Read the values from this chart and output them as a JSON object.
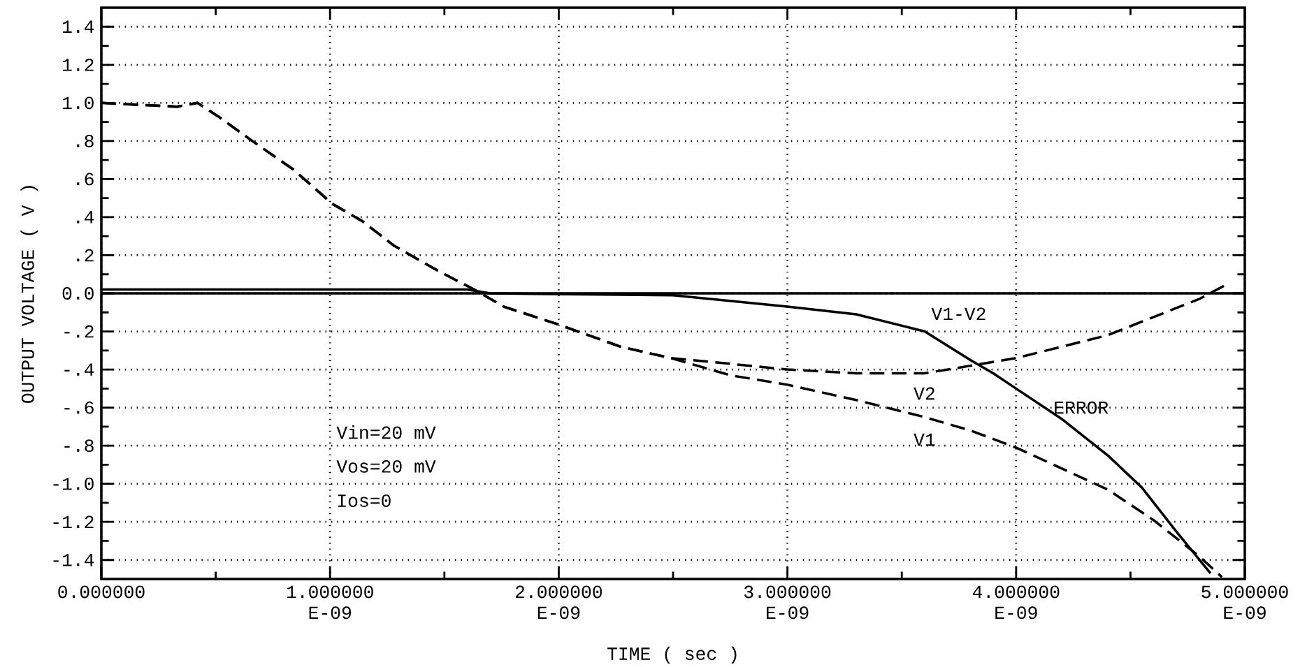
{
  "chart_data": {
    "type": "line",
    "xlabel": "TIME ( sec )",
    "ylabel": "OUTPUT VOLTAGE ( V )",
    "xlim": [
      0,
      5e-09
    ],
    "ylim": [
      -1.5,
      1.5
    ],
    "xticks": [
      {
        "value": 0,
        "label": "0.000000"
      },
      {
        "value": 1e-09,
        "label": "1.000000E-09"
      },
      {
        "value": 2e-09,
        "label": "2.000000E-09"
      },
      {
        "value": 3e-09,
        "label": "3.000000E-09"
      },
      {
        "value": 4e-09,
        "label": "4.000000E-09"
      },
      {
        "value": 5e-09,
        "label": "5.000000E-09"
      }
    ],
    "yticks": [
      1.4,
      1.2,
      {
        "value": 1.0,
        "label": "1.0"
      },
      {
        "value": 0.8,
        "label": ".8"
      },
      {
        "value": 0.6,
        "label": ".6"
      },
      {
        "value": 0.4,
        "label": ".4"
      },
      {
        "value": 0.2,
        "label": ".2"
      },
      {
        "value": 0,
        "label": "0.0"
      },
      {
        "value": -0.2,
        "label": "-.2"
      },
      {
        "value": -0.4,
        "label": "-.4"
      },
      {
        "value": -0.6,
        "label": "-.6"
      },
      {
        "value": -0.8,
        "label": "-.8"
      },
      {
        "value": -1.0,
        "label": "-1.0"
      },
      -1.2,
      -1.4
    ],
    "grid": true,
    "marker": "none",
    "ref_lines": [
      {
        "axis": "y",
        "value": 0
      }
    ],
    "series": [
      {
        "name": "V1",
        "color": "#000000",
        "line_style": "dashed",
        "x": [
          0,
          3.3e-10,
          4.2e-10,
          5.1e-10,
          6.6e-10,
          8.4e-10,
          1.01e-09,
          1.14e-09,
          1.28e-09,
          1.47e-09,
          1.63e-09,
          1.76e-09,
          1.99e-09,
          2.27e-09,
          2.49e-09,
          2.75e-09,
          3e-09,
          3.3e-09,
          3.6e-09,
          3.8e-09,
          4e-09,
          4.2e-09,
          4.4e-09,
          4.6e-09,
          4.8e-09,
          4.9e-09
        ],
        "values": [
          1.0,
          0.98,
          1.0,
          0.93,
          0.8,
          0.65,
          0.47,
          0.38,
          0.25,
          0.12,
          0.02,
          -0.07,
          -0.16,
          -0.28,
          -0.34,
          -0.43,
          -0.48,
          -0.56,
          -0.65,
          -0.72,
          -0.81,
          -0.92,
          -1.03,
          -1.19,
          -1.38,
          -1.49
        ]
      },
      {
        "name": "V2",
        "color": "#000000",
        "line_style": "dashed",
        "x": [
          0,
          3.3e-10,
          4.2e-10,
          5.1e-10,
          6.6e-10,
          8.4e-10,
          1.01e-09,
          1.14e-09,
          1.28e-09,
          1.47e-09,
          1.63e-09,
          1.76e-09,
          1.99e-09,
          2.27e-09,
          2.49e-09,
          2.75e-09,
          3e-09,
          3.3e-09,
          3.6e-09,
          3.8e-09,
          4e-09,
          4.4e-09,
          4.8e-09,
          4.91e-09
        ],
        "values": [
          1.0,
          0.98,
          1.0,
          0.93,
          0.8,
          0.65,
          0.47,
          0.38,
          0.25,
          0.12,
          0.02,
          -0.07,
          -0.16,
          -0.28,
          -0.34,
          -0.37,
          -0.4,
          -0.42,
          -0.42,
          -0.38,
          -0.34,
          -0.22,
          -0.03,
          0.04
        ]
      },
      {
        "name": "V1-V2",
        "color": "#000000",
        "line_style": "solid",
        "x": [
          0,
          1.6e-09,
          1.7e-09,
          2.5e-09,
          3e-09,
          3.3e-09,
          3.6e-09,
          3.8e-09,
          3.9e-09,
          4e-09,
          4.2e-09,
          4.4e-09,
          4.55e-09,
          4.7e-09,
          4.85e-09
        ],
        "values": [
          0.02,
          0.02,
          0,
          -0.01,
          -0.07,
          -0.11,
          -0.2,
          -0.35,
          -0.42,
          -0.5,
          -0.66,
          -0.85,
          -1.02,
          -1.25,
          -1.47
        ]
      }
    ],
    "annotations": [
      "Vin=20 mV",
      "Vos=20 mV",
      "Ios=0",
      "ERROR"
    ]
  }
}
